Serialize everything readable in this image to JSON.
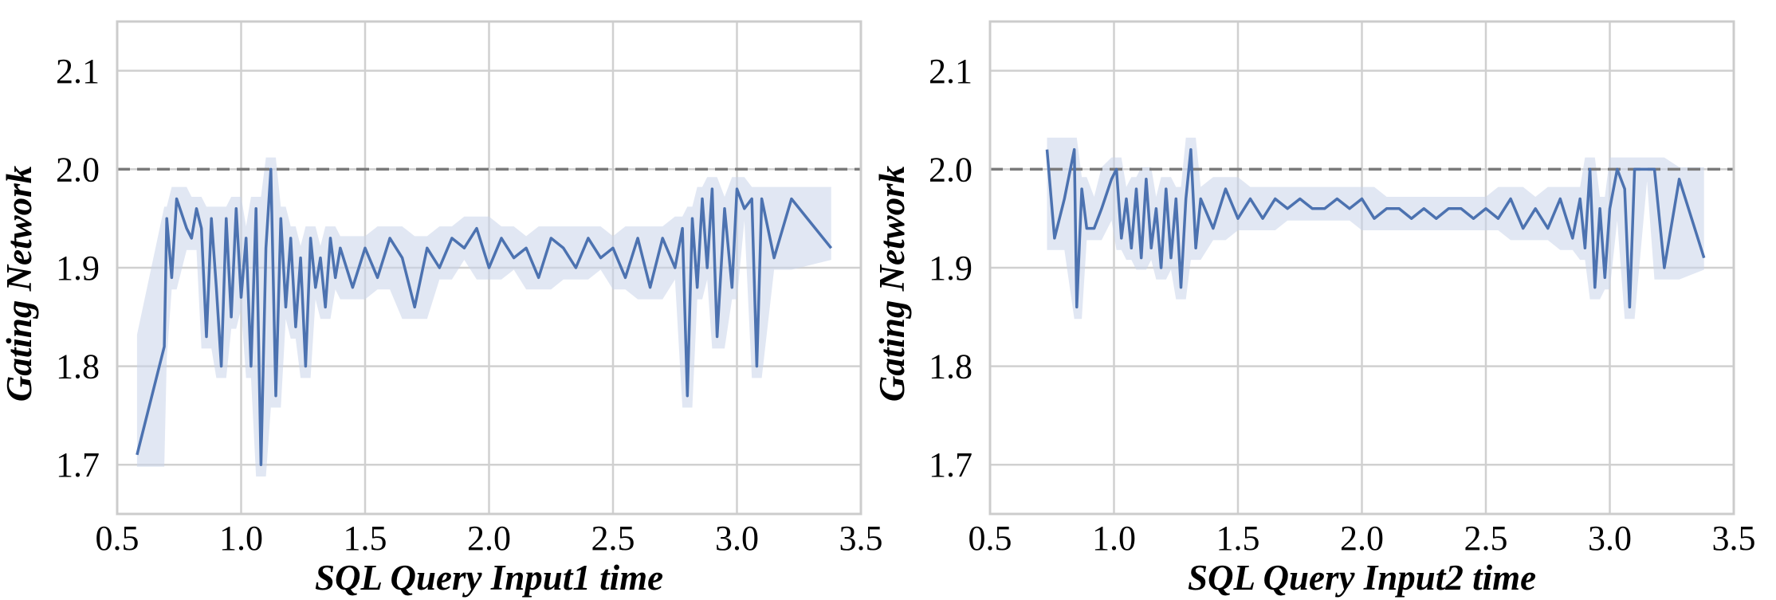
{
  "chart_data": [
    {
      "type": "line",
      "xlabel": "SQL Query Input1 time",
      "ylabel": "Gating Network",
      "xlim": [
        0.5,
        3.5
      ],
      "ylim": [
        1.65,
        2.15
      ],
      "xticks": [
        "0.5",
        "1.0",
        "1.5",
        "2.0",
        "2.5",
        "3.0",
        "3.5"
      ],
      "yticks": [
        "1.7",
        "1.8",
        "1.9",
        "2.0",
        "2.1"
      ],
      "grid": true,
      "reference_line": {
        "y": 2.0,
        "style": "dashed"
      },
      "line_color": "#4c72b0",
      "band_color": "#c9d4e9",
      "series": [
        {
          "x": [
            0.58,
            0.69,
            0.7,
            0.72,
            0.74,
            0.78,
            0.8,
            0.82,
            0.84,
            0.86,
            0.88,
            0.9,
            0.92,
            0.94,
            0.96,
            0.98,
            1.0,
            1.02,
            1.04,
            1.06,
            1.08,
            1.1,
            1.12,
            1.14,
            1.16,
            1.18,
            1.2,
            1.22,
            1.24,
            1.26,
            1.28,
            1.3,
            1.32,
            1.34,
            1.36,
            1.38,
            1.4,
            1.45,
            1.5,
            1.55,
            1.6,
            1.65,
            1.7,
            1.75,
            1.8,
            1.85,
            1.9,
            1.95,
            2.0,
            2.05,
            2.1,
            2.15,
            2.2,
            2.25,
            2.3,
            2.35,
            2.4,
            2.45,
            2.5,
            2.55,
            2.6,
            2.65,
            2.7,
            2.75,
            2.78,
            2.8,
            2.82,
            2.84,
            2.86,
            2.88,
            2.9,
            2.92,
            2.95,
            2.98,
            3.0,
            3.03,
            3.06,
            3.08,
            3.1,
            3.15,
            3.22,
            3.38
          ],
          "y": [
            1.71,
            1.82,
            1.95,
            1.89,
            1.97,
            1.94,
            1.93,
            1.96,
            1.94,
            1.83,
            1.95,
            1.88,
            1.8,
            1.95,
            1.85,
            1.96,
            1.87,
            1.93,
            1.8,
            1.96,
            1.7,
            1.92,
            2.0,
            1.77,
            1.95,
            1.86,
            1.93,
            1.84,
            1.91,
            1.8,
            1.93,
            1.88,
            1.91,
            1.86,
            1.93,
            1.89,
            1.92,
            1.88,
            1.92,
            1.89,
            1.93,
            1.91,
            1.86,
            1.92,
            1.9,
            1.93,
            1.92,
            1.94,
            1.9,
            1.93,
            1.91,
            1.92,
            1.89,
            1.93,
            1.92,
            1.9,
            1.93,
            1.91,
            1.92,
            1.89,
            1.93,
            1.88,
            1.93,
            1.9,
            1.94,
            1.77,
            1.95,
            1.88,
            1.97,
            1.9,
            1.98,
            1.83,
            1.96,
            1.88,
            1.98,
            1.96,
            1.97,
            1.8,
            1.97,
            1.91,
            1.97,
            1.92
          ]
        }
      ]
    },
    {
      "type": "line",
      "xlabel": "SQL Query Input2 time",
      "ylabel": "Gating Network",
      "xlim": [
        0.5,
        3.5
      ],
      "ylim": [
        1.65,
        2.15
      ],
      "xticks": [
        "0.5",
        "1.0",
        "1.5",
        "2.0",
        "2.5",
        "3.0",
        "3.5"
      ],
      "yticks": [
        "1.7",
        "1.8",
        "1.9",
        "2.0",
        "2.1"
      ],
      "grid": true,
      "reference_line": {
        "y": 2.0,
        "style": "dashed"
      },
      "line_color": "#4c72b0",
      "band_color": "#c9d4e9",
      "series": [
        {
          "x": [
            0.73,
            0.76,
            0.8,
            0.84,
            0.85,
            0.87,
            0.89,
            0.92,
            0.95,
            0.99,
            1.01,
            1.03,
            1.05,
            1.07,
            1.09,
            1.11,
            1.13,
            1.15,
            1.17,
            1.19,
            1.21,
            1.23,
            1.25,
            1.27,
            1.29,
            1.31,
            1.33,
            1.35,
            1.4,
            1.45,
            1.5,
            1.55,
            1.6,
            1.65,
            1.7,
            1.75,
            1.8,
            1.85,
            1.9,
            1.95,
            2.0,
            2.05,
            2.1,
            2.15,
            2.2,
            2.25,
            2.3,
            2.35,
            2.4,
            2.45,
            2.5,
            2.55,
            2.6,
            2.65,
            2.7,
            2.75,
            2.8,
            2.85,
            2.88,
            2.9,
            2.92,
            2.94,
            2.96,
            2.98,
            3.0,
            3.03,
            3.06,
            3.08,
            3.1,
            3.15,
            3.18,
            3.22,
            3.28,
            3.38
          ],
          "y": [
            2.02,
            1.93,
            1.97,
            2.02,
            1.86,
            1.98,
            1.94,
            1.94,
            1.96,
            1.99,
            2.0,
            1.93,
            1.97,
            1.92,
            1.98,
            1.91,
            1.99,
            1.92,
            1.96,
            1.9,
            1.98,
            1.91,
            1.97,
            1.88,
            1.97,
            2.02,
            1.92,
            1.97,
            1.94,
            1.98,
            1.95,
            1.97,
            1.95,
            1.97,
            1.96,
            1.97,
            1.96,
            1.96,
            1.97,
            1.96,
            1.97,
            1.95,
            1.96,
            1.96,
            1.95,
            1.96,
            1.95,
            1.96,
            1.96,
            1.95,
            1.96,
            1.95,
            1.97,
            1.94,
            1.96,
            1.94,
            1.97,
            1.93,
            1.97,
            1.92,
            2.0,
            1.88,
            1.96,
            1.89,
            1.96,
            2.0,
            1.98,
            1.86,
            2.0,
            2.0,
            2.0,
            1.9,
            1.99,
            1.91
          ]
        }
      ]
    }
  ]
}
